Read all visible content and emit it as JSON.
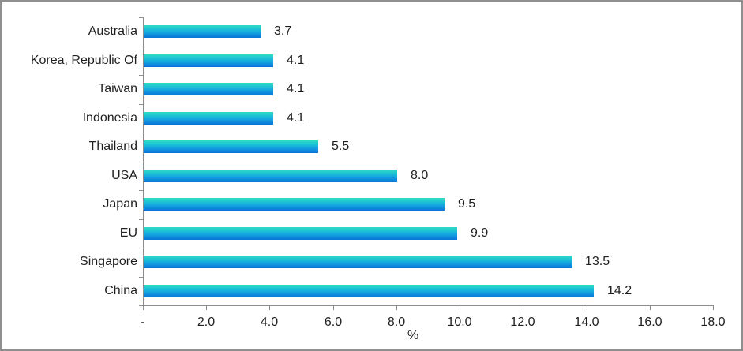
{
  "chart_data": {
    "type": "bar",
    "orientation": "horizontal",
    "title": "",
    "xlabel": "%",
    "ylabel": "",
    "categories_top_to_bottom": [
      "Australia",
      "Korea, Republic Of",
      "Taiwan",
      "Indonesia",
      "Thailand",
      "USA",
      "Japan",
      "EU",
      "Singapore",
      "China"
    ],
    "values": [
      3.7,
      4.1,
      4.1,
      4.1,
      5.5,
      8.0,
      9.5,
      9.9,
      13.5,
      14.2
    ],
    "value_labels": [
      "3.7",
      "4.1",
      "4.1",
      "4.1",
      "5.5",
      "8.0",
      "9.5",
      "9.9",
      "13.5",
      "14.2"
    ],
    "xlim": [
      0,
      18
    ],
    "x_tick_labels": [
      "-",
      "2.0",
      "4.0",
      "6.0",
      "8.0",
      "10.0",
      "12.0",
      "14.0",
      "16.0",
      "18.0"
    ],
    "x_tick_values": [
      0,
      2,
      4,
      6,
      8,
      10,
      12,
      14,
      16,
      18
    ],
    "grid": false,
    "legend": false,
    "colors": {
      "bar_gradient_top": "#2fdcc3",
      "bar_gradient_mid": "#14a8de",
      "bar_gradient_bottom": "#0a74d4",
      "axis": "#8c8c8c",
      "text": "#1f1f1f",
      "frame_border": "#8f8f8f",
      "background": "#ffffff"
    }
  }
}
